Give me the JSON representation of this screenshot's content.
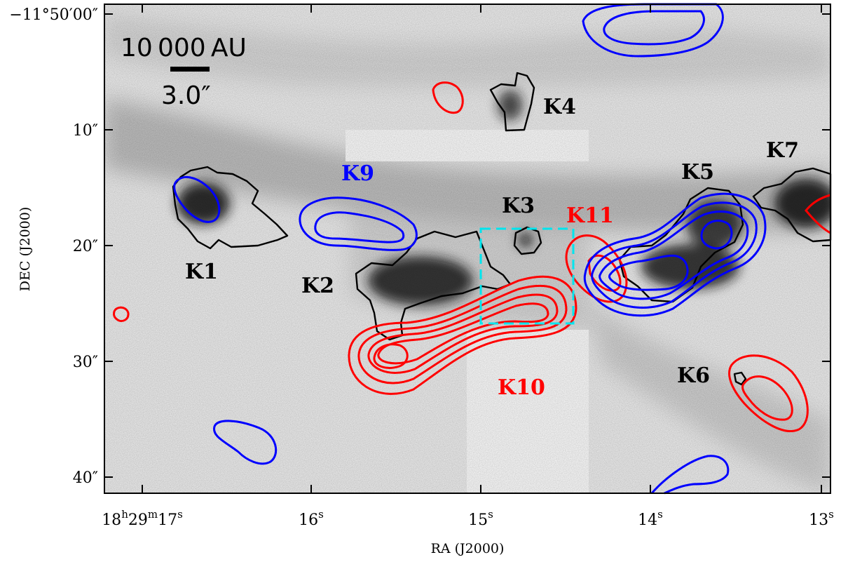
{
  "figure": {
    "xlabel": "RA (J2000)",
    "ylabel": "DEC (J2000)",
    "x_ticks": [
      {
        "base": "18",
        "u1": "h",
        "mid": "29",
        "u2": "m",
        "last": "17",
        "u3": "s"
      },
      {
        "base": "16",
        "u3": "s"
      },
      {
        "base": "15",
        "u3": "s"
      },
      {
        "base": "14",
        "u3": "s"
      },
      {
        "base": "13",
        "u3": "s"
      }
    ],
    "y_ticks": [
      "−11°50′00″",
      "10″",
      "20″",
      "30″",
      "40″"
    ],
    "scale_bar": {
      "physical": "10 000 AU",
      "angular": "3.0″"
    },
    "knots": [
      {
        "name": "K1",
        "color": "#000000"
      },
      {
        "name": "K2",
        "color": "#000000"
      },
      {
        "name": "K3",
        "color": "#000000"
      },
      {
        "name": "K4",
        "color": "#000000"
      },
      {
        "name": "K5",
        "color": "#000000"
      },
      {
        "name": "K6",
        "color": "#000000"
      },
      {
        "name": "K7",
        "color": "#000000"
      },
      {
        "name": "K9",
        "color": "#0000ff"
      },
      {
        "name": "K10",
        "color": "#ff0000"
      },
      {
        "name": "K11",
        "color": "#ff0000"
      }
    ],
    "colors": {
      "red_contours": "#ff0000",
      "blue_contours": "#0000ff",
      "box": "#00e5ee",
      "knot_outline": "#000000"
    }
  }
}
